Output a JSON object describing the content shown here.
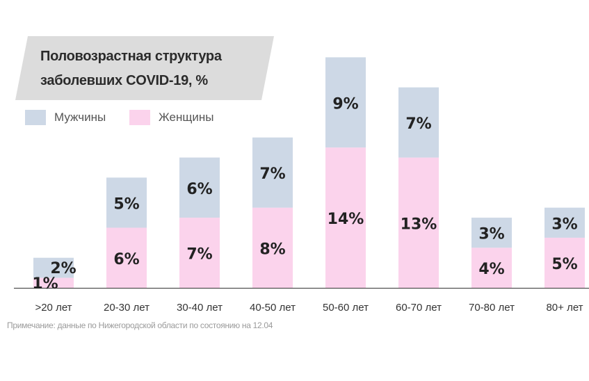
{
  "title": "Половозрастная структура заболевших COVID-19, %",
  "legend": {
    "men": "Мужчины",
    "women": "Женщины"
  },
  "note": "Примечание: данные по Нижегородской области по состоянию на 12.04",
  "colors": {
    "men": "#cdd8e6",
    "women": "#fbd3ec",
    "label": "#222222",
    "axis": "#333333"
  },
  "chart_data": {
    "type": "bar",
    "stacked": true,
    "categories": [
      ">20 лет",
      "20-30 лет",
      "30-40 лет",
      "40-50 лет",
      "50-60 лет",
      "60-70 лет",
      "70-80 лет",
      "80+ лет"
    ],
    "series": [
      {
        "name": "Женщины",
        "values": [
          1,
          6,
          7,
          8,
          14,
          13,
          4,
          5
        ],
        "labels": [
          "1%",
          "6%",
          "7%",
          "8%",
          "14%",
          "13%",
          "4%",
          "5%"
        ]
      },
      {
        "name": "Мужчины",
        "values": [
          2,
          5,
          6,
          7,
          9,
          7,
          3,
          3
        ],
        "labels": [
          "2%",
          "5%",
          "6%",
          "7%",
          "9%",
          "7%",
          "3%",
          "3%"
        ]
      }
    ],
    "ylim": [
      0,
      24
    ],
    "grid": false,
    "legend_position": "top-left"
  }
}
